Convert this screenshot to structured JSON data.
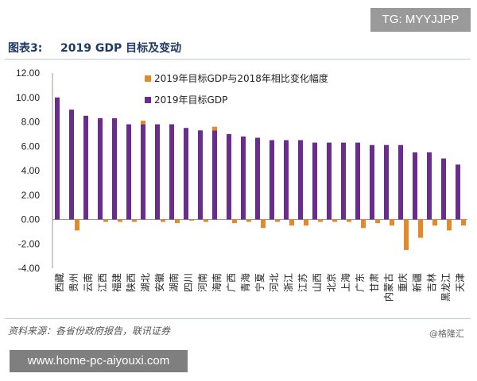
{
  "watermark_top": "TG: MYYJJPP",
  "watermark_bottom": "www.home-pc-aiyouxi.com",
  "header": {
    "label": "图表3:",
    "text": "2019 GDP 目标及变动"
  },
  "source": "资料来源：各省份政府报告，联讯证券",
  "logo": "@格隆汇",
  "colors": {
    "target": "#6a2c91",
    "change": "#e08a2c",
    "title": "#1f3864"
  },
  "chart_data": {
    "type": "bar",
    "title": "2019 GDP 目标及变动",
    "xlabel": "",
    "ylabel": "",
    "ylim": [
      -4,
      12
    ],
    "yticks": [
      "12.00",
      "10.00",
      "8.00",
      "6.00",
      "4.00",
      "2.00",
      "0.00",
      "-2.00",
      "-4.00"
    ],
    "legend_position": "top-center",
    "categories": [
      "西藏",
      "贵州",
      "云南",
      "江西",
      "福建",
      "陕西",
      "湖北",
      "安徽",
      "湖南",
      "四川",
      "河南",
      "海南",
      "广西",
      "青海",
      "宁夏",
      "河北",
      "浙江",
      "江苏",
      "山西",
      "北京",
      "上海",
      "广东",
      "甘肃",
      "内蒙古",
      "重庆",
      "新疆",
      "吉林",
      "黑龙江",
      "天津"
    ],
    "series": [
      {
        "name": "2019年目标GDP与2018年相比变化幅度",
        "values": [
          0,
          -0.9,
          0,
          -0.2,
          -0.2,
          -0.2,
          0.3,
          -0.2,
          -0.3,
          -0.1,
          -0.2,
          0.3,
          -0.3,
          -0.2,
          -0.7,
          -0.2,
          -0.5,
          -0.5,
          -0.2,
          -0.2,
          -0.2,
          -0.7,
          -0.3,
          -0.5,
          -2.5,
          -1.5,
          -0.5,
          -0.9,
          -0.5
        ]
      },
      {
        "name": "2019年目标GDP",
        "values": [
          10,
          9,
          8.5,
          8.3,
          8.3,
          7.8,
          7.8,
          7.8,
          7.8,
          7.5,
          7.3,
          7.3,
          7.0,
          6.8,
          6.7,
          6.5,
          6.5,
          6.5,
          6.3,
          6.3,
          6.3,
          6.3,
          6.1,
          6.1,
          6.1,
          5.5,
          5.5,
          5.0,
          4.5
        ]
      }
    ]
  }
}
